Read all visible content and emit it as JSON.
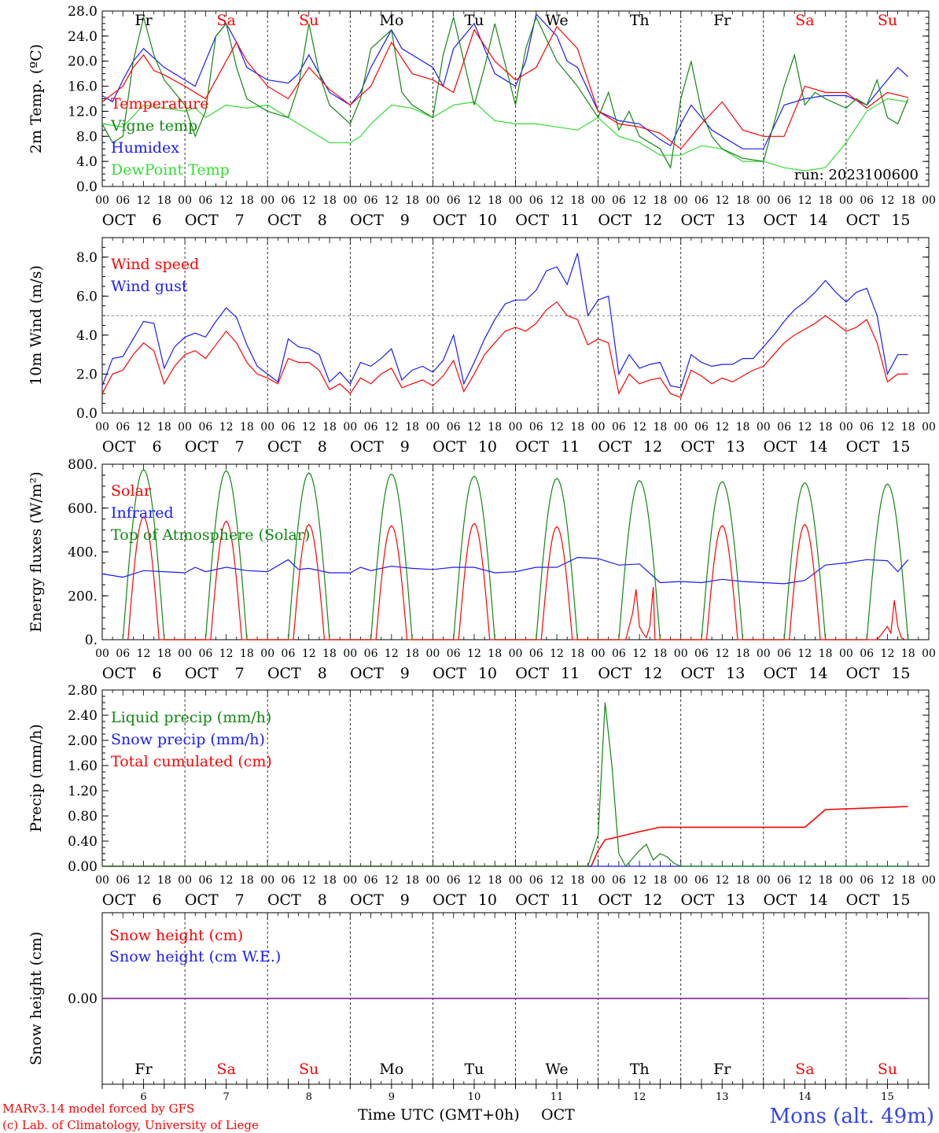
{
  "days": [
    "6",
    "7",
    "8",
    "9",
    "10",
    "11",
    "12",
    "13",
    "14",
    "15"
  ],
  "month": "OCT",
  "weekdays": [
    "Fr",
    "Sa",
    "Su",
    "Mo",
    "Tu",
    "We",
    "Th",
    "Fr",
    "Sa",
    "Su"
  ],
  "weekday_colors": [
    "#000000",
    "#ff0000",
    "#ff0000",
    "#000000",
    "#000000",
    "#000000",
    "#000000",
    "#000000",
    "#ff0000",
    "#ff0000"
  ],
  "hour_labels": [
    "00",
    "06",
    "12",
    "18"
  ],
  "footer": {
    "credit_line1": "MARv3.14 model forced by GFS",
    "credit_line2": "(c) Lab. of Climatology, University of Liege",
    "time_axis_label": "Time UTC (GMT+0h)",
    "month_label": "OCT",
    "station": "Mons (alt. 49m)"
  },
  "colors": {
    "red": "#ff0000",
    "green": "#118811",
    "blue": "#1a1aff",
    "lightgreen": "#33dd33",
    "purple": "#8833aa",
    "station": "#3344ee"
  },
  "chart_data": [
    {
      "type": "line",
      "ylabel": "2m Temp. (ºC)",
      "ylim": [
        0,
        28
      ],
      "yticks": [
        "0.0",
        "4.0",
        "8.0",
        "12.0",
        "16.0",
        "20.0",
        "24.0",
        "28.0"
      ],
      "annotation": "run: 2023100600",
      "x_unit": "hours since Oct 6 00 UTC",
      "series": [
        {
          "name": "Temperature",
          "color": "#ff0000",
          "x": [
            0,
            6,
            9,
            12,
            15,
            18,
            24,
            30,
            36,
            39,
            42,
            48,
            54,
            60,
            66,
            72,
            78,
            84,
            90,
            96,
            102,
            108,
            114,
            120,
            126,
            132,
            138,
            144,
            150,
            156,
            162,
            168,
            174,
            180,
            186,
            192,
            198,
            204,
            210,
            216,
            222,
            228,
            234
          ],
          "y": [
            13.5,
            16,
            19,
            21,
            18.5,
            17.8,
            16,
            14,
            20,
            23,
            20,
            16,
            14,
            19,
            15.5,
            13,
            16,
            23,
            18,
            17,
            15,
            25,
            20,
            17,
            19,
            25.5,
            22,
            12,
            10,
            9.5,
            8.5,
            6,
            10,
            13.5,
            9,
            8,
            8,
            16,
            15,
            15,
            12.5,
            15,
            14.2
          ]
        },
        {
          "name": "Vigne temp",
          "color": "#118811",
          "x": [
            0,
            3,
            6,
            9,
            12,
            15,
            18,
            24,
            27,
            30,
            33,
            36,
            39,
            42,
            48,
            54,
            57,
            60,
            63,
            66,
            72,
            75,
            78,
            84,
            87,
            90,
            96,
            99,
            102,
            108,
            111,
            114,
            120,
            123,
            126,
            132,
            135,
            138,
            144,
            147,
            150,
            153,
            156,
            162,
            165,
            168,
            171,
            174,
            177,
            180,
            186,
            192,
            198,
            201,
            204,
            207,
            210,
            216,
            219,
            222,
            225,
            228,
            231,
            234
          ],
          "y": [
            10,
            7,
            8,
            20,
            27,
            21,
            17,
            13,
            8,
            12,
            24,
            26,
            19,
            14,
            12,
            11,
            16,
            26,
            18,
            13,
            10,
            14,
            22,
            25,
            15,
            13,
            11,
            21,
            27,
            13,
            19,
            26,
            13,
            22,
            27,
            20,
            18,
            16,
            11,
            15,
            9,
            12,
            8,
            6,
            3,
            14,
            20,
            12,
            8,
            6,
            4.5,
            4,
            16,
            21,
            13,
            15,
            14,
            12.5,
            14,
            13,
            17,
            11,
            10,
            14
          ]
        },
        {
          "name": "Humidex",
          "color": "#1a1aff",
          "x": [
            0,
            3,
            6,
            9,
            12,
            15,
            18,
            24,
            27,
            30,
            33,
            36,
            39,
            42,
            48,
            54,
            57,
            60,
            63,
            66,
            72,
            75,
            78,
            84,
            87,
            90,
            96,
            99,
            102,
            108,
            111,
            114,
            120,
            123,
            126,
            132,
            135,
            138,
            144,
            150,
            156,
            162,
            165,
            168,
            171,
            174,
            177,
            180,
            186,
            192,
            198,
            204,
            210,
            216,
            222,
            225,
            228,
            231,
            234
          ],
          "y": [
            14.5,
            13.5,
            17,
            20,
            22,
            20.5,
            19,
            17,
            16,
            20,
            24,
            26,
            23,
            19,
            17,
            16.5,
            18,
            21,
            18,
            15,
            13,
            15,
            19,
            25,
            22,
            21,
            19,
            16,
            22,
            26,
            22,
            18,
            16,
            20,
            27.5,
            24,
            20,
            19,
            12,
            10.5,
            10,
            7.5,
            6.5,
            10,
            13,
            11,
            9,
            8,
            6,
            6,
            13,
            14,
            14.5,
            14.5,
            13,
            15,
            17,
            19,
            17.5
          ]
        },
        {
          "name": "DewPoint Temp",
          "color": "#33dd33",
          "x": [
            0,
            6,
            12,
            18,
            24,
            27,
            30,
            36,
            42,
            48,
            54,
            60,
            66,
            72,
            75,
            78,
            84,
            90,
            96,
            102,
            108,
            114,
            120,
            126,
            132,
            138,
            144,
            150,
            156,
            162,
            168,
            174,
            180,
            186,
            192,
            198,
            204,
            210,
            216,
            222,
            228,
            234
          ],
          "y": [
            10,
            9.5,
            13,
            12.5,
            12,
            12.5,
            11,
            13,
            12.5,
            13,
            11,
            9,
            7,
            7,
            8,
            10,
            13,
            12.5,
            11,
            13,
            13.5,
            10.5,
            10,
            10,
            9.5,
            9,
            11,
            8,
            7,
            5,
            5,
            6.5,
            6,
            4,
            4,
            3,
            2.5,
            3,
            7,
            12,
            14,
            13.5
          ]
        }
      ]
    },
    {
      "type": "line",
      "ylabel": "10m Wind (m/s)",
      "ylim": [
        0,
        9
      ],
      "yticks": [
        "0.0",
        "2.0",
        "4.0",
        "6.0",
        "8.0"
      ],
      "reference_line": 5,
      "series": [
        {
          "name": "Wind speed",
          "color": "#ff0000",
          "x": [
            0,
            3,
            6,
            9,
            12,
            15,
            18,
            21,
            24,
            27,
            30,
            33,
            36,
            39,
            42,
            45,
            48,
            51,
            54,
            57,
            60,
            63,
            66,
            69,
            72,
            75,
            78,
            81,
            84,
            87,
            90,
            93,
            96,
            99,
            102,
            105,
            108,
            111,
            114,
            117,
            120,
            123,
            126,
            129,
            132,
            135,
            138,
            141,
            144,
            147,
            150,
            153,
            156,
            159,
            162,
            165,
            168,
            171,
            174,
            177,
            180,
            183,
            186,
            189,
            192,
            195,
            198,
            201,
            204,
            207,
            210,
            213,
            216,
            219,
            222,
            225,
            228,
            231,
            234
          ],
          "y": [
            1,
            2,
            2.2,
            3,
            3.6,
            3.2,
            1.5,
            2.4,
            3,
            3.2,
            2.8,
            3.5,
            4.2,
            3.6,
            2.6,
            2,
            1.8,
            1.5,
            2.8,
            2.6,
            2.6,
            2.2,
            1.2,
            1.5,
            1,
            1.8,
            1.5,
            2,
            2.3,
            1.3,
            1.5,
            1.7,
            1.4,
            1.9,
            2.7,
            1.1,
            2,
            3,
            3.6,
            4.2,
            4.4,
            4.2,
            4.6,
            5.3,
            5.7,
            5,
            4.8,
            3.5,
            3.8,
            3.6,
            1,
            2,
            1.5,
            1.7,
            1.8,
            1,
            0.8,
            2.2,
            1.9,
            1.5,
            1.8,
            1.6,
            1.9,
            2.2,
            2.4,
            3,
            3.6,
            4,
            4.3,
            4.6,
            5,
            4.6,
            4.2,
            4.4,
            4.8,
            3.6,
            1.6,
            2,
            2
          ]
        },
        {
          "name": "Wind gust",
          "color": "#1a1aff",
          "x": [
            0,
            3,
            6,
            9,
            12,
            15,
            18,
            21,
            24,
            27,
            30,
            33,
            36,
            39,
            42,
            45,
            48,
            51,
            54,
            57,
            60,
            63,
            66,
            69,
            72,
            75,
            78,
            81,
            84,
            87,
            90,
            93,
            96,
            99,
            102,
            105,
            108,
            111,
            114,
            117,
            120,
            123,
            126,
            129,
            132,
            135,
            138,
            141,
            144,
            147,
            150,
            153,
            156,
            159,
            162,
            165,
            168,
            171,
            174,
            177,
            180,
            183,
            186,
            189,
            192,
            195,
            198,
            201,
            204,
            207,
            210,
            213,
            216,
            219,
            222,
            225,
            228,
            231,
            234
          ],
          "y": [
            1.4,
            2.8,
            2.9,
            3.8,
            4.7,
            4.6,
            2.3,
            3.4,
            3.9,
            4.1,
            3.9,
            4.7,
            5.4,
            4.9,
            3.5,
            2.4,
            2,
            1.6,
            3.8,
            3.4,
            3.3,
            3,
            1.6,
            2.1,
            1.5,
            2.6,
            2.4,
            2.8,
            3.3,
            1.7,
            2.2,
            2.4,
            2.1,
            2.7,
            4,
            1.5,
            2.6,
            3.8,
            4.8,
            5.6,
            5.8,
            5.8,
            6.3,
            7.3,
            7.5,
            6.6,
            8.2,
            5,
            5.8,
            6,
            2,
            3,
            2.3,
            2.5,
            2.6,
            1.4,
            1.3,
            3,
            2.6,
            2.4,
            2.5,
            2.5,
            2.8,
            2.8,
            3.4,
            4,
            4.7,
            5.3,
            5.7,
            6.2,
            6.8,
            6.2,
            5.7,
            6.2,
            6.4,
            5,
            2,
            3,
            3
          ]
        }
      ]
    },
    {
      "type": "line",
      "ylabel": "Energy fluxes (W/m²)",
      "ylim": [
        0,
        800
      ],
      "yticks": [
        "0.",
        "200.",
        "400.",
        "600.",
        "800."
      ],
      "series": [
        {
          "name": "Solar",
          "color": "#ff0000",
          "daily_peaks": [
            560,
            540,
            525,
            520,
            530,
            515,
            240,
            520,
            525,
            180
          ]
        },
        {
          "name": "Infrared",
          "color": "#1a1aff",
          "x": [
            0,
            6,
            12,
            18,
            24,
            27,
            30,
            36,
            42,
            48,
            54,
            57,
            60,
            66,
            72,
            75,
            78,
            84,
            90,
            96,
            102,
            108,
            114,
            120,
            126,
            132,
            138,
            144,
            150,
            156,
            162,
            168,
            174,
            180,
            186,
            192,
            198,
            204,
            210,
            216,
            222,
            228,
            231,
            234
          ],
          "y": [
            300,
            285,
            315,
            310,
            305,
            330,
            310,
            330,
            315,
            310,
            365,
            320,
            325,
            305,
            305,
            330,
            315,
            335,
            325,
            320,
            330,
            330,
            305,
            310,
            330,
            330,
            375,
            370,
            340,
            345,
            260,
            265,
            260,
            275,
            265,
            260,
            255,
            270,
            340,
            350,
            365,
            360,
            310,
            365
          ]
        },
        {
          "name": "Top of Atmosphere (Solar)",
          "color": "#118811",
          "daily_peaks": [
            775,
            770,
            760,
            755,
            745,
            735,
            725,
            720,
            715,
            710
          ]
        }
      ]
    },
    {
      "type": "line",
      "ylabel": "Precip (mm/h)",
      "ylim": [
        0,
        2.8
      ],
      "yticks": [
        "0.00",
        "0.40",
        "0.80",
        "1.20",
        "1.60",
        "2.00",
        "2.40",
        "2.80"
      ],
      "series": [
        {
          "name": "Liquid precip (mm/h)",
          "color": "#118811",
          "x": [
            0,
            141,
            144,
            146,
            148,
            150,
            152,
            156,
            158,
            160,
            162,
            164,
            166,
            168,
            170,
            234
          ],
          "y": [
            0,
            0,
            0.5,
            2.6,
            1.6,
            0.2,
            0,
            0.25,
            0.35,
            0.1,
            0.2,
            0.15,
            0.05,
            0,
            0,
            0
          ]
        },
        {
          "name": "Snow precip (mm/h)",
          "color": "#1a1aff",
          "x": [
            0,
            234
          ],
          "y": [
            0,
            0
          ]
        },
        {
          "name": "Total cumulated (cm)",
          "color": "#ff0000",
          "x": [
            0,
            142,
            144,
            146,
            150,
            156,
            162,
            168,
            204,
            210,
            234
          ],
          "y": [
            0,
            0,
            0.25,
            0.42,
            0.47,
            0.55,
            0.62,
            0.62,
            0.62,
            0.9,
            0.95
          ]
        }
      ]
    },
    {
      "type": "line",
      "ylabel": "Snow height (cm)",
      "ylim": [
        -1,
        1
      ],
      "yticks": [
        "0.00"
      ],
      "series": [
        {
          "name": "Snow height (cm)",
          "color": "#ff0000",
          "x": [
            0,
            234
          ],
          "y": [
            0,
            0
          ]
        },
        {
          "name": "Snow height (cm W.E.)",
          "color": "#1a1aff",
          "x": [
            0,
            234
          ],
          "y": [
            0,
            0
          ]
        }
      ]
    }
  ]
}
